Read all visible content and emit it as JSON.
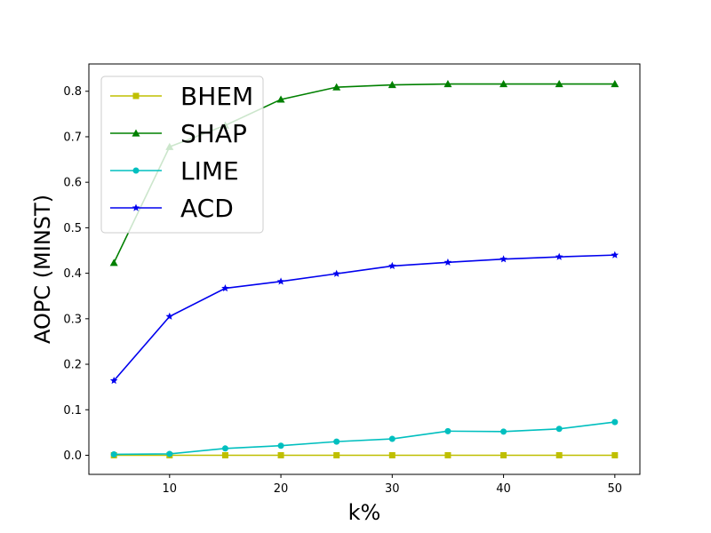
{
  "chart_data": {
    "type": "line",
    "title": "",
    "xlabel": "k%",
    "ylabel": "AOPC (MINST)",
    "x": [
      5,
      10,
      15,
      20,
      25,
      30,
      35,
      40,
      45,
      50
    ],
    "xticks": [
      10,
      20,
      30,
      40,
      50
    ],
    "yticks": [
      0.0,
      0.1,
      0.2,
      0.3,
      0.4,
      0.5,
      0.6,
      0.7,
      0.8
    ],
    "xlim": [
      2.75,
      52.25
    ],
    "ylim": [
      -0.042,
      0.86
    ],
    "grid": false,
    "legend_position": "top-left",
    "series": [
      {
        "name": "BHEM",
        "color": "#bfbf00",
        "marker": "square",
        "values": [
          0.0,
          0.0,
          0.0,
          0.0,
          0.0,
          0.0,
          0.0,
          0.0,
          0.0,
          0.0
        ]
      },
      {
        "name": "SHAP",
        "color": "#008000",
        "marker": "triangle",
        "values": [
          0.423,
          0.678,
          0.725,
          0.782,
          0.809,
          0.814,
          0.816,
          0.816,
          0.816,
          0.816
        ]
      },
      {
        "name": "LIME",
        "color": "#00bfbf",
        "marker": "circle",
        "values": [
          0.002,
          0.003,
          0.015,
          0.021,
          0.03,
          0.036,
          0.053,
          0.052,
          0.058,
          0.073
        ]
      },
      {
        "name": "ACD",
        "color": "#0000ee",
        "marker": "star",
        "values": [
          0.164,
          0.305,
          0.367,
          0.382,
          0.399,
          0.416,
          0.424,
          0.431,
          0.436,
          0.44
        ]
      }
    ]
  }
}
